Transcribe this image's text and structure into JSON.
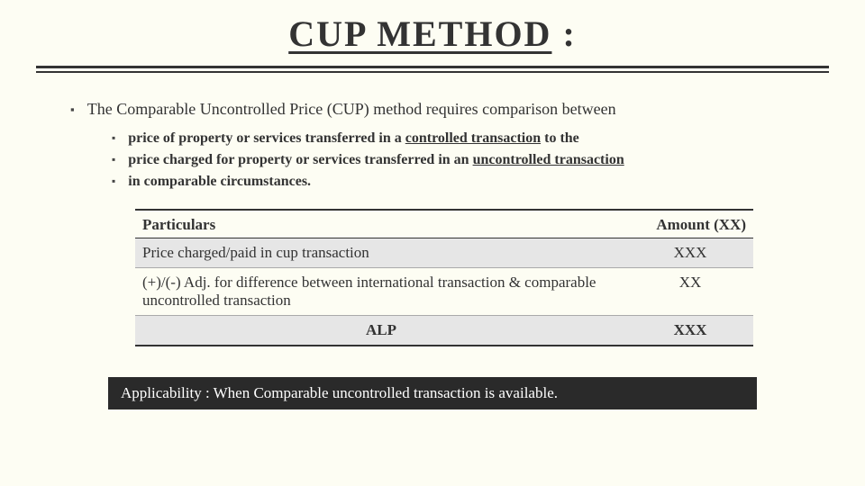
{
  "title": {
    "main": "CUP METHOD",
    "suffix": " :"
  },
  "lead": "The Comparable Uncontrolled Price (CUP) method requires comparison between",
  "sub_bullets": [
    {
      "pre": "price of property or services transferred in a ",
      "bold": "controlled transaction",
      "post": " to the"
    },
    {
      "pre": "price charged for property or services transferred in an ",
      "bold": "uncontrolled transaction",
      "post": ""
    },
    {
      "pre": "in comparable circumstances.",
      "bold": "",
      "post": ""
    }
  ],
  "table": {
    "columns": [
      "Particulars",
      "Amount (XX)"
    ],
    "rows": [
      [
        "Price charged/paid in cup transaction",
        "XXX"
      ],
      [
        "(+)/(-) Adj. for difference between international transaction & comparable uncontrolled transaction",
        "XX"
      ],
      [
        "ALP",
        "XXX"
      ]
    ],
    "header_border_color": "#333333",
    "row_stripe_color": "#e6e6e6",
    "font_size": 17
  },
  "footer": "Applicability : When Comparable uncontrolled transaction is available.",
  "colors": {
    "background": "#fdfdf3",
    "text": "#333333",
    "footer_bg": "#2a2a2a",
    "footer_text": "#ffffff"
  }
}
